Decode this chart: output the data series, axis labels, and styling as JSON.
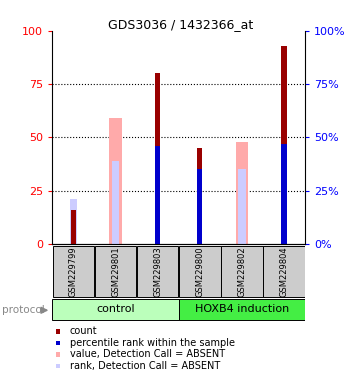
{
  "title": "GDS3036 / 1432366_at",
  "samples": [
    "GSM229799",
    "GSM229801",
    "GSM229803",
    "GSM229800",
    "GSM229802",
    "GSM229804"
  ],
  "bar_colors": {
    "count_present": "#990000",
    "count_absent": "#ffaaaa",
    "rank_present": "#0000cc",
    "rank_absent": "#ccccff"
  },
  "count_values": [
    16,
    0,
    80,
    45,
    0,
    93
  ],
  "count_absent_values": [
    0,
    59,
    0,
    0,
    48,
    0
  ],
  "rank_present_values": [
    0,
    0,
    46,
    35,
    0,
    47
  ],
  "rank_absent_values": [
    21,
    39,
    0,
    0,
    35,
    0
  ],
  "ylim": [
    0,
    100
  ],
  "yticks": [
    0,
    25,
    50,
    75,
    100
  ],
  "legend_items": [
    {
      "label": "count",
      "color": "#990000"
    },
    {
      "label": "percentile rank within the sample",
      "color": "#0000cc"
    },
    {
      "label": "value, Detection Call = ABSENT",
      "color": "#ffaaaa"
    },
    {
      "label": "rank, Detection Call = ABSENT",
      "color": "#ccccff"
    }
  ],
  "ctrl_color": "#bbffbb",
  "hoxb4_color": "#44ee44",
  "label_box_color": "#cccccc",
  "protocol_arrow_color": "#888888"
}
